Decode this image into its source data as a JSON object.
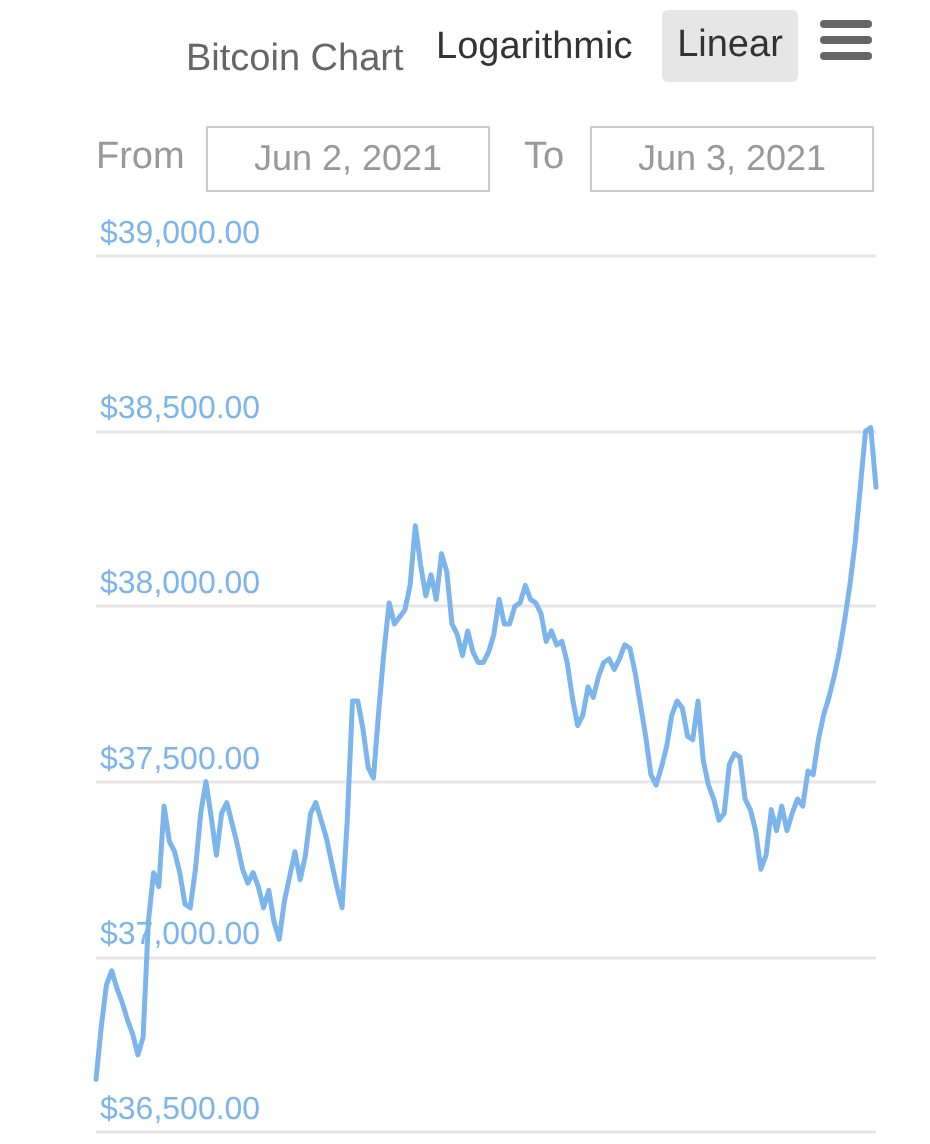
{
  "chart_data": {
    "type": "line",
    "title": "Bitcoin Chart",
    "annotations": [
      "Logarithmic",
      "Linear",
      "From",
      "Jun 2, 2021",
      "To",
      "Jun 3, 2021"
    ],
    "categories": [
      null,
      null,
      null,
      null,
      null,
      null,
      null,
      null,
      null,
      null,
      null,
      null,
      null,
      null,
      null,
      null,
      null,
      null,
      null,
      null,
      null,
      null,
      null,
      null,
      null,
      null,
      null,
      null,
      null,
      null,
      null,
      null,
      null,
      null,
      null,
      null,
      null,
      null,
      null,
      null,
      null,
      null,
      null,
      null,
      null,
      null,
      null,
      null,
      null,
      null,
      null,
      null,
      null,
      null,
      null,
      null,
      null,
      null,
      null,
      null,
      null,
      null,
      null,
      null,
      null,
      null,
      null,
      null,
      null,
      null,
      null,
      null,
      null,
      null,
      null,
      null,
      null,
      null,
      null,
      null,
      null,
      null,
      null,
      null,
      null,
      null,
      null,
      null,
      null,
      null,
      null,
      null,
      null,
      null,
      null,
      null,
      null,
      null,
      null,
      null,
      null,
      null,
      null,
      null,
      null,
      null,
      null,
      null,
      null,
      null,
      null,
      null,
      null,
      null,
      null,
      null,
      null,
      null,
      null,
      null,
      null,
      null,
      null,
      null,
      null,
      null,
      null,
      null,
      null,
      null,
      null,
      null,
      null,
      null,
      null,
      null,
      null,
      null,
      null,
      null,
      null,
      null,
      null,
      null,
      null,
      null,
      null,
      null,
      null,
      null
    ],
    "series": [
      {
        "color": "#7cb5ec",
        "values": [
          36650,
          36800,
          36920,
          36960,
          36910,
          36870,
          36820,
          36780,
          36720,
          36770,
          37100,
          37240,
          37200,
          37430,
          37330,
          37300,
          37240,
          37150,
          37140,
          37250,
          37410,
          37500,
          37400,
          37290,
          37410,
          37440,
          37380,
          37320,
          37250,
          37210,
          37240,
          37200,
          37140,
          37190,
          37100,
          37050,
          37160,
          37230,
          37300,
          37220,
          37290,
          37410,
          37440,
          37390,
          37340,
          37270,
          37200,
          37140,
          37390,
          37730,
          37730,
          37650,
          37540,
          37510,
          37700,
          37870,
          38010,
          37950,
          37970,
          37990,
          38060,
          38230,
          38120,
          38030,
          38090,
          38020,
          38150,
          38100,
          37950,
          37920,
          37860,
          37930,
          37870,
          37840,
          37840,
          37870,
          37920,
          38020,
          37950,
          37950,
          38000,
          38010,
          38060,
          38020,
          38010,
          37980,
          37900,
          37930,
          37890,
          37900,
          37840,
          37740,
          37660,
          37690,
          37770,
          37740,
          37800,
          37840,
          37850,
          37820,
          37850,
          37890,
          37880,
          37810,
          37720,
          37630,
          37520,
          37490,
          37540,
          37600,
          37690,
          37730,
          37710,
          37630,
          37620,
          37730,
          37560,
          37490,
          37450,
          37390,
          37410,
          37550,
          37580,
          37570,
          37450,
          37420,
          37360,
          37250,
          37290,
          37420,
          37360,
          37430,
          37360,
          37410,
          37450,
          37430,
          37530,
          37520,
          37620,
          37690,
          37740,
          37800,
          37870,
          37960,
          38060,
          38180,
          38340,
          38500,
          38510,
          38340
        ]
      }
    ],
    "ylim": [
      36500,
      39000
    ],
    "yticks": [
      {
        "value": 36500,
        "label": "$36,500.00"
      },
      {
        "value": 37000,
        "label": "$37,000.00"
      },
      {
        "value": 37500,
        "label": "$37,500.00"
      },
      {
        "value": 38000,
        "label": "$38,000.00"
      },
      {
        "value": 38500,
        "label": "$38,500.00"
      },
      {
        "value": 39000,
        "label": "$39,000.00"
      }
    ],
    "grid": "y",
    "tick_labels": "y"
  }
}
